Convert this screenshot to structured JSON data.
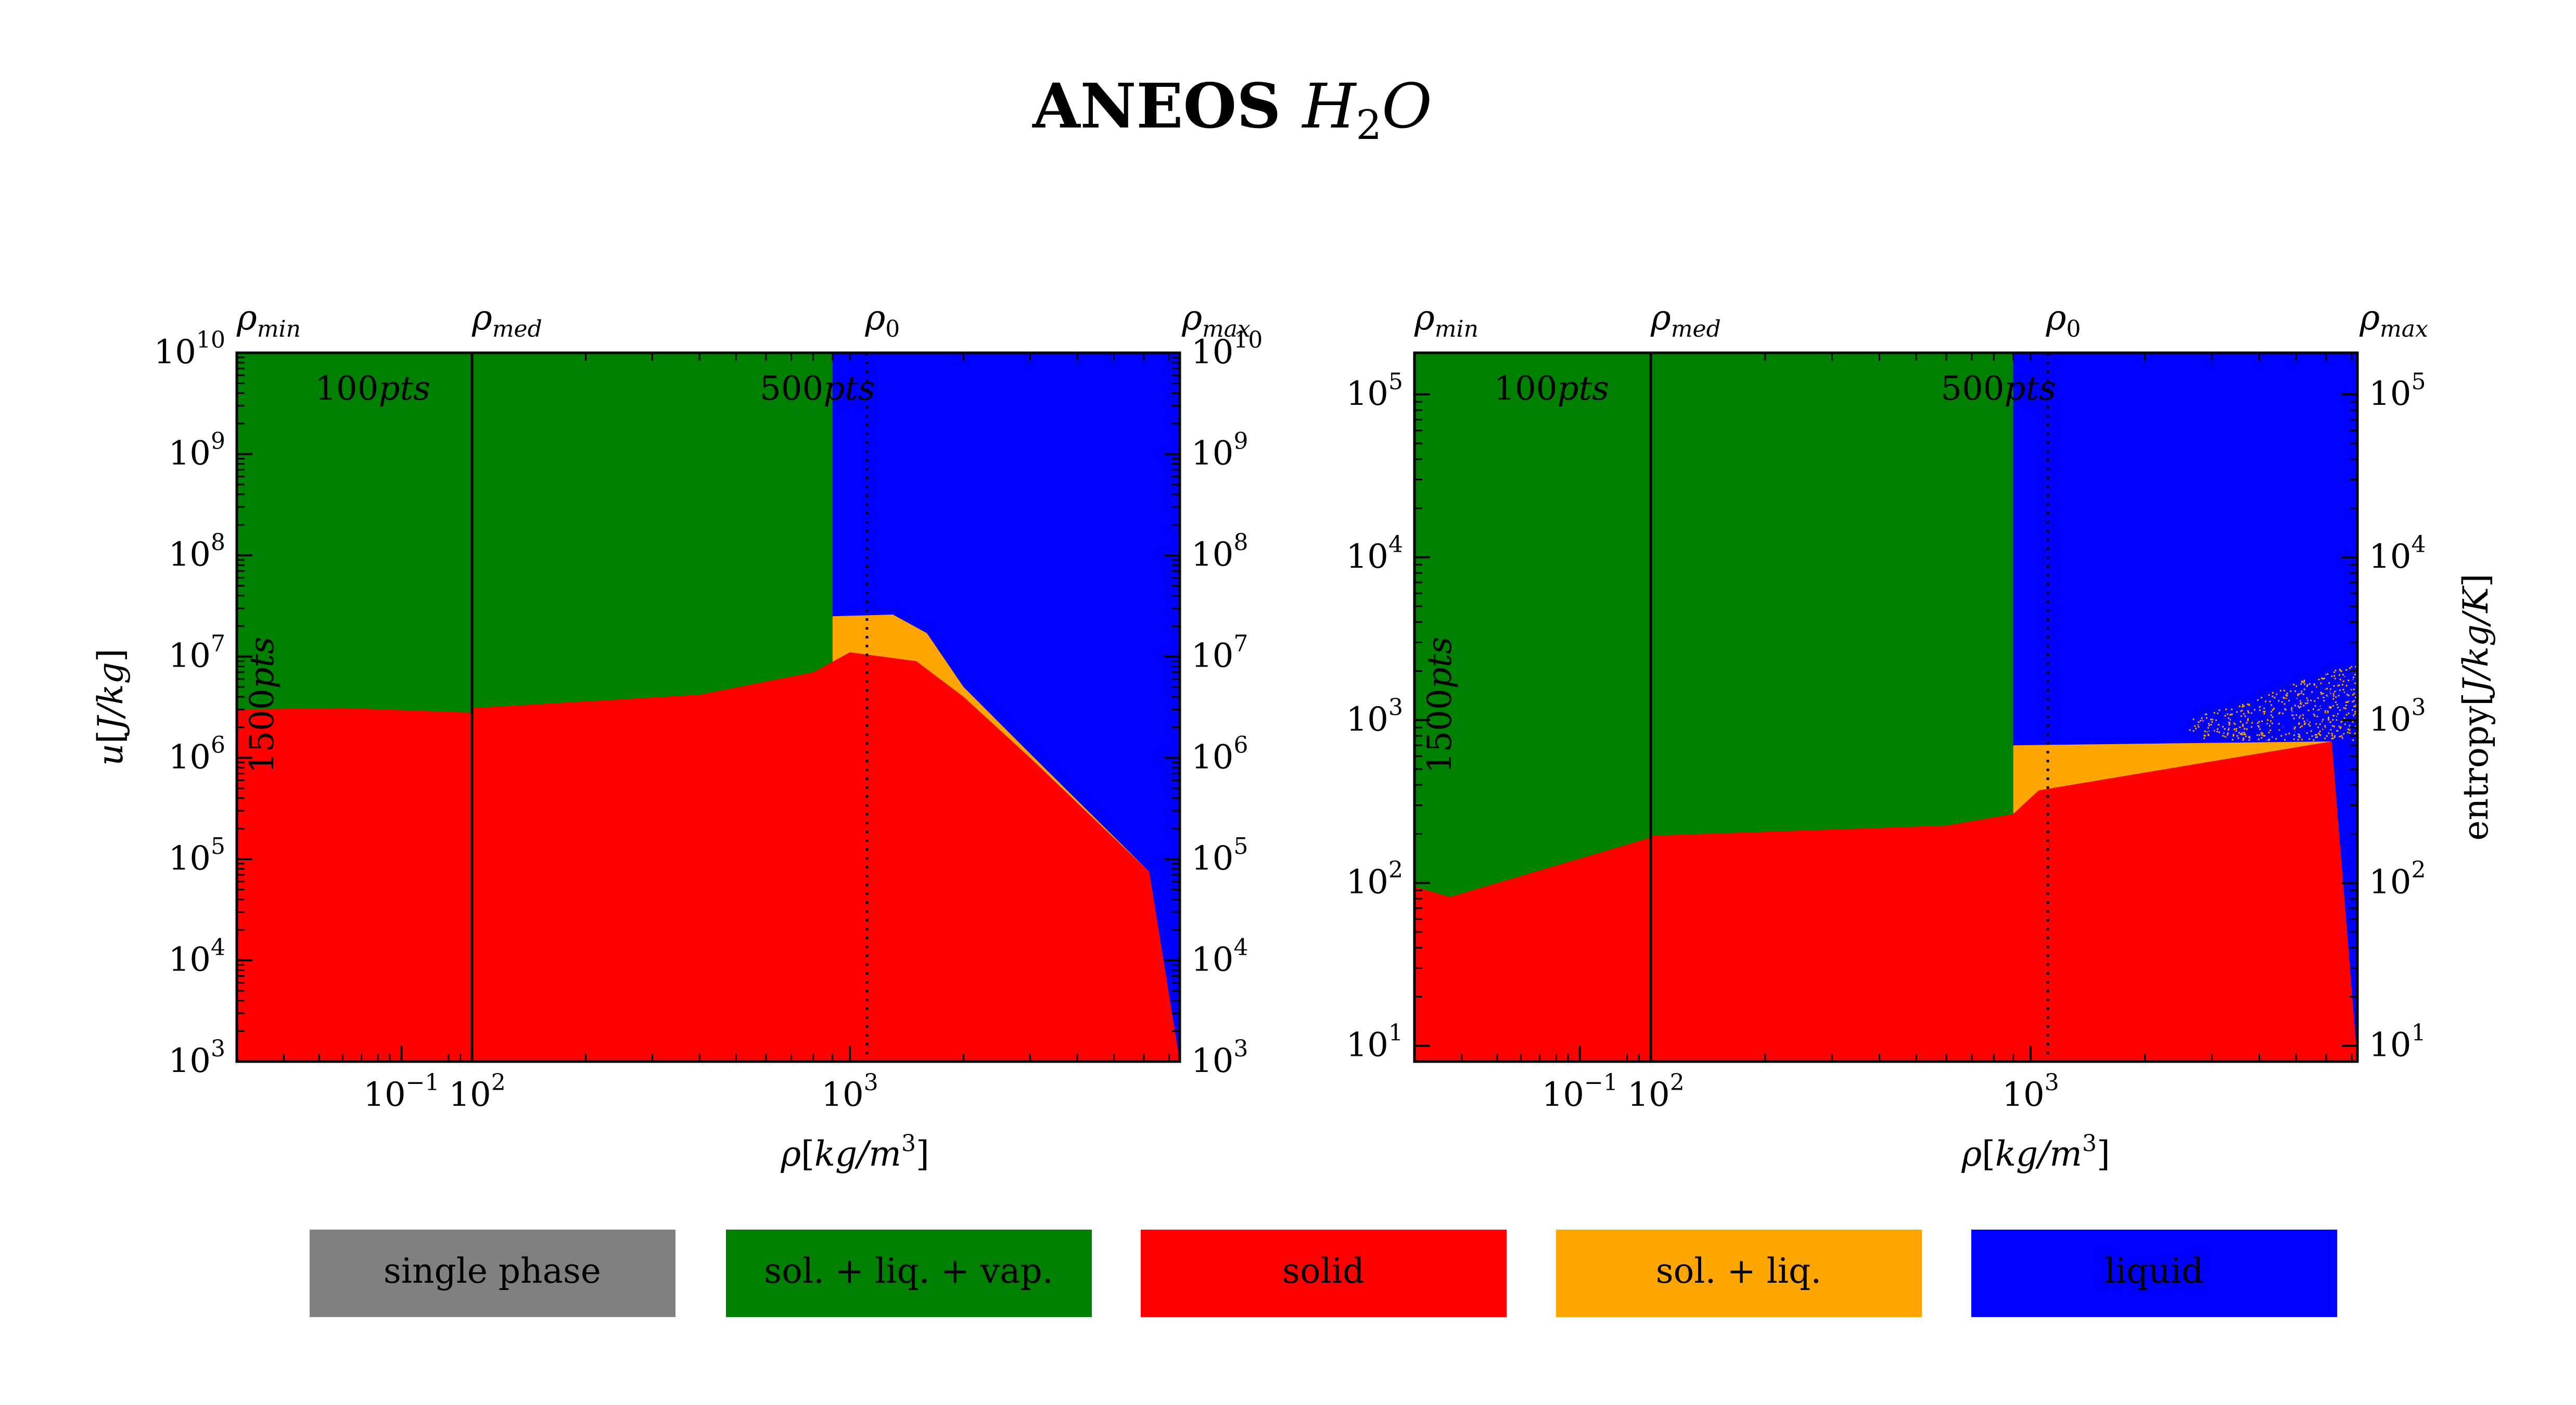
{
  "figure": {
    "title_main": "ANEOS",
    "title_formula": {
      "base": "H",
      "sub": "2",
      "rest": "O"
    }
  },
  "colors": {
    "single_phase": "#808080",
    "sol_liq_vap": "#008000",
    "solid": "#ff0000",
    "sol_liq": "#ffa500",
    "liquid": "#0000ff"
  },
  "legend": {
    "items": [
      {
        "key": "single_phase",
        "label": "single phase"
      },
      {
        "key": "sol_liq_vap",
        "label": "sol. + liq. + vap."
      },
      {
        "key": "solid",
        "label": "solid"
      },
      {
        "key": "sol_liq",
        "label": "sol. + liq."
      },
      {
        "key": "liquid",
        "label": "liquid"
      }
    ]
  },
  "chart_data": [
    {
      "type": "heatmap",
      "xlabel": {
        "base": "ρ",
        "unit": "[kg/m",
        "sup": "3",
        "end": "]"
      },
      "ylabel": {
        "base": "u",
        "unit": "[J/kg]"
      },
      "y_scale": "log",
      "ylim": [
        1000,
        10000000000
      ],
      "yticks": [
        3,
        4,
        5,
        6,
        7,
        8,
        9,
        10
      ],
      "x_scale": "log",
      "xticks_low": [
        {
          "exp": "−1",
          "value": 0.1
        }
      ],
      "xticks_main": [
        {
          "exp": "2",
          "value": 100
        },
        {
          "exp": "3",
          "value": 1000
        }
      ],
      "top_markers": [
        {
          "sym": "ρ",
          "sub": "min"
        },
        {
          "sym": "ρ",
          "sub": "med"
        },
        {
          "sym": "ρ",
          "sub": "0"
        },
        {
          "sym": "ρ",
          "sub": "max"
        }
      ],
      "reference_density": 1110,
      "annotations": {
        "top_left": {
          "num": "100",
          "unit": "pts"
        },
        "top_right": {
          "num": "500",
          "unit": "pts"
        },
        "vertical": {
          "num": "1500",
          "unit": "pts"
        }
      },
      "solid_boundary": {
        "low_density_u": [
          [
            0,
            3000000.0
          ],
          [
            0.45,
            3100000.0
          ],
          [
            1,
            2800000.0
          ]
        ],
        "high_density_u": [
          [
            100,
            3100000.0
          ],
          [
            400,
            4200000.0
          ],
          [
            800,
            7000000.0
          ],
          [
            1000,
            11000000.0
          ],
          [
            1500,
            9000000.0
          ],
          [
            2000,
            4000000.0
          ],
          [
            3000,
            1000000.0
          ],
          [
            6200,
            75000.0
          ]
        ]
      },
      "melt_upper_u": [
        [
          900,
          25000000.0
        ],
        [
          1300,
          26000000.0
        ],
        [
          1600,
          17000000.0
        ],
        [
          2000,
          5000000.0
        ],
        [
          3000,
          1100000.0
        ],
        [
          6200,
          75000.0
        ]
      ],
      "liquid_start_density": 900
    },
    {
      "type": "heatmap",
      "xlabel": {
        "base": "ρ",
        "unit": "[kg/m",
        "sup": "3",
        "end": "]"
      },
      "ylabel": {
        "pre": "entropy",
        "unit": "[J/kg/K]"
      },
      "y_scale": "log",
      "ylim": [
        8,
        180000
      ],
      "yticks": [
        1,
        2,
        3,
        4,
        5
      ],
      "x_scale": "log",
      "xticks_low": [
        {
          "exp": "−1",
          "value": 0.1
        }
      ],
      "xticks_main": [
        {
          "exp": "2",
          "value": 100
        },
        {
          "exp": "3",
          "value": 1000
        }
      ],
      "top_markers": [
        {
          "sym": "ρ",
          "sub": "min"
        },
        {
          "sym": "ρ",
          "sub": "med"
        },
        {
          "sym": "ρ",
          "sub": "0"
        },
        {
          "sym": "ρ",
          "sub": "max"
        }
      ],
      "reference_density": 1110,
      "annotations": {
        "top_left": {
          "num": "100",
          "unit": "pts"
        },
        "top_right": {
          "num": "500",
          "unit": "pts"
        },
        "vertical": {
          "num": "1500",
          "unit": "pts"
        }
      },
      "solid_boundary": {
        "low_density_s": [
          [
            0,
            95
          ],
          [
            0.15,
            82
          ],
          [
            1,
            190
          ]
        ],
        "high_density_s": [
          [
            100,
            195
          ],
          [
            600,
            225
          ],
          [
            900,
            265
          ],
          [
            1050,
            370
          ],
          [
            6200,
            740
          ]
        ]
      },
      "melt_upper_s": [
        [
          900,
          700
        ],
        [
          6200,
          740
        ]
      ],
      "liquid_start_density": 900
    }
  ]
}
